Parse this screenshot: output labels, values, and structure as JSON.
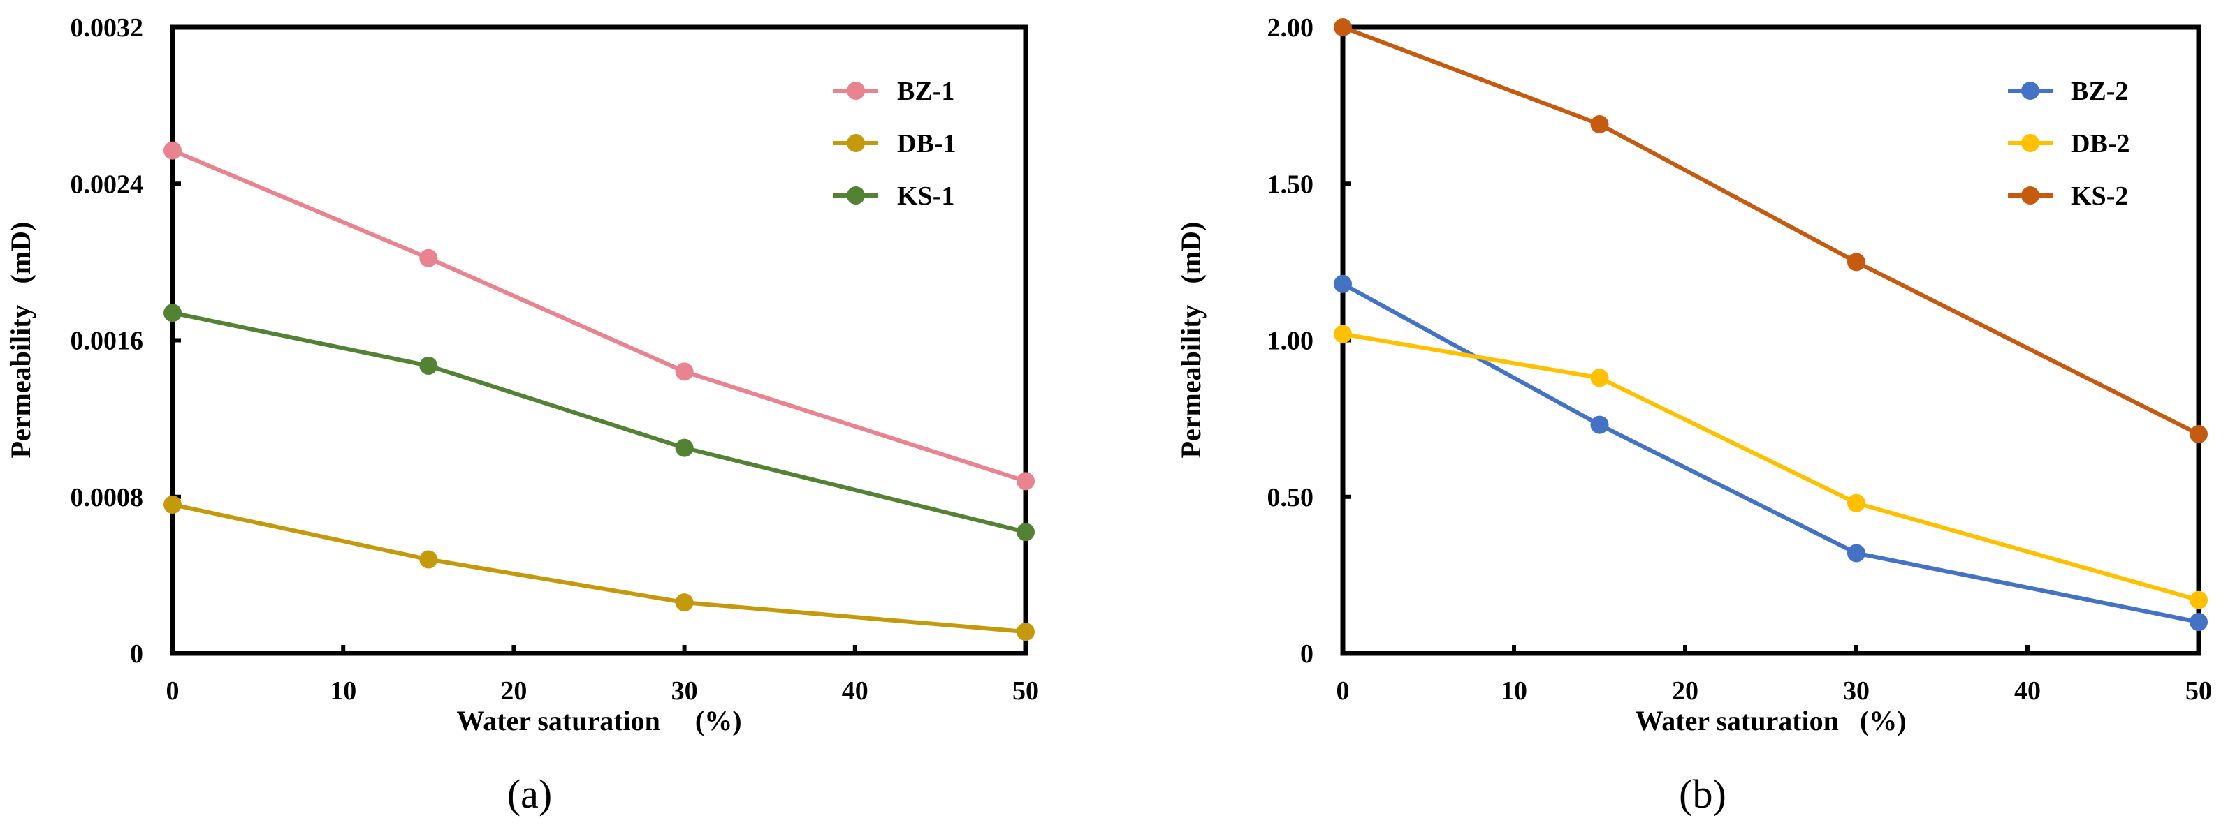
{
  "chart_data": [
    {
      "type": "line",
      "panel_label": "(a)",
      "title": "",
      "xlabel": "Water saturation     (%)",
      "ylabel": "Permeability   (mD)",
      "xlim": [
        0,
        50
      ],
      "ylim": [
        0,
        0.0032
      ],
      "x_ticks": [
        0,
        10,
        20,
        30,
        40,
        50
      ],
      "x_tick_labels": [
        "0",
        "10",
        "20",
        "30",
        "40",
        "50"
      ],
      "y_ticks": [
        0,
        0.0008,
        0.0016,
        0.0024,
        0.0032
      ],
      "y_tick_labels": [
        "0",
        "0.0008",
        "0.0016",
        "0.0024",
        "0.0032"
      ],
      "grid": false,
      "legend_position": "top-right",
      "x": [
        0,
        15,
        30,
        50
      ],
      "series": [
        {
          "name": "BZ-1",
          "color": "#E8838F",
          "values": [
            0.00257,
            0.00202,
            0.00144,
            0.00088
          ]
        },
        {
          "name": "DB-1",
          "color": "#C49A0C",
          "values": [
            0.00076,
            0.00048,
            0.00026,
            0.00011
          ]
        },
        {
          "name": "KS-1",
          "color": "#548235",
          "values": [
            0.00174,
            0.00147,
            0.00105,
            0.00062
          ]
        }
      ]
    },
    {
      "type": "line",
      "panel_label": "(b)",
      "title": "",
      "xlabel": "Water saturation   (%)",
      "ylabel": "Permeability   (mD)",
      "xlim": [
        0,
        50
      ],
      "ylim": [
        0,
        2.0
      ],
      "x_ticks": [
        0,
        10,
        20,
        30,
        40,
        50
      ],
      "x_tick_labels": [
        "0",
        "10",
        "20",
        "30",
        "40",
        "50"
      ],
      "y_ticks": [
        0,
        0.5,
        1.0,
        1.5,
        2.0
      ],
      "y_tick_labels": [
        "0",
        "0.50",
        "1.00",
        "1.50",
        "2.00"
      ],
      "grid": false,
      "legend_position": "top-right",
      "x": [
        0,
        15,
        30,
        50
      ],
      "series": [
        {
          "name": "BZ-2",
          "color": "#4472C4",
          "values": [
            1.18,
            0.73,
            0.32,
            0.1
          ]
        },
        {
          "name": "DB-2",
          "color": "#FFC000",
          "values": [
            1.02,
            0.88,
            0.48,
            0.17
          ]
        },
        {
          "name": "KS-2",
          "color": "#C55A11",
          "values": [
            2.0,
            1.69,
            1.25,
            0.7
          ]
        }
      ]
    }
  ]
}
